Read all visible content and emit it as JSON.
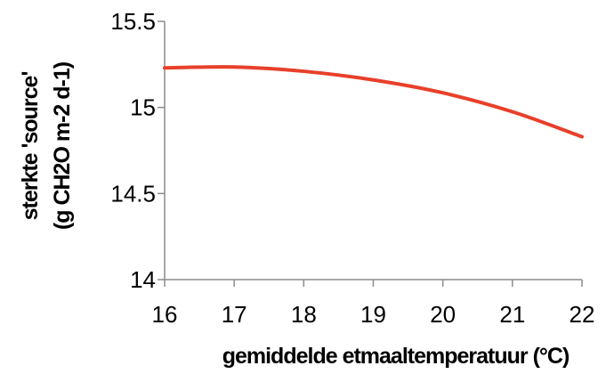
{
  "chart_data": {
    "type": "line",
    "xlabel": "gemiddelde etmaaltemperatuur (°C)",
    "ylabel_line1": "sterkte 'source'",
    "ylabel_line2": "(g CH2O m-2 d-1)",
    "x": [
      16,
      17,
      18,
      19,
      20,
      21,
      22
    ],
    "series": [
      {
        "values": [
          15.23,
          15.235,
          15.21,
          15.16,
          15.085,
          14.975,
          14.83
        ]
      }
    ],
    "xlim": [
      16,
      22
    ],
    "ylim": [
      14,
      15.5
    ],
    "x_ticks": [
      "16",
      "17",
      "18",
      "19",
      "20",
      "21",
      "22"
    ],
    "y_ticks": [
      "14",
      "14.5",
      "15",
      "15.5"
    ],
    "y_tick_values": [
      14,
      14.5,
      15,
      15.5
    ],
    "line_color": "#e8402a",
    "axis_color": "#8c8c8c",
    "grid": false,
    "legend": false
  }
}
